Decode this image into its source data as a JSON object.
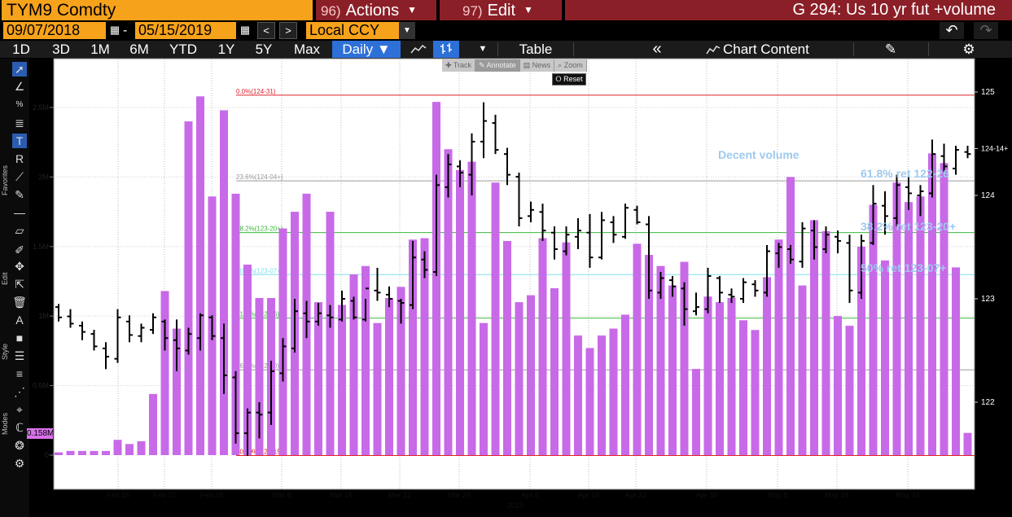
{
  "header": {
    "ticker": "TYM9 Comdty",
    "actions_num": "96)",
    "actions_label": "Actions",
    "edit_num": "97)",
    "edit_label": "Edit",
    "title": "G 294: Us 10 yr fut +volume"
  },
  "controls": {
    "start_date": "09/07/2018",
    "end_date": "05/15/2019",
    "date_separator": "-",
    "currency": "Local CCY"
  },
  "toolbar": {
    "periods": [
      "1D",
      "3D",
      "1M",
      "6M",
      "YTD",
      "1Y",
      "5Y",
      "Max"
    ],
    "frequency": "Daily ▼",
    "table_label": "Table",
    "chart_content_label": "Chart Content"
  },
  "chart_tools": {
    "items": [
      "Track",
      "Annotate",
      "News",
      "Zoom"
    ],
    "reset_label": "Reset"
  },
  "side_groups": [
    "Favorites",
    "Edit",
    "Style",
    "Modes"
  ],
  "volume_tag": "0.158M",
  "colors": {
    "accent_orange": "#f7a21b",
    "menu_red": "#8b1f28",
    "volume_bar": "#c86ae8",
    "price_bar": "#000000",
    "fib_red": "#e1212a",
    "fib_green": "#38b838",
    "fib_cyan": "#7fe0e8",
    "fib_gray": "#9a9a9a",
    "annotation_blue": "#9fc9ee"
  },
  "chart_data": {
    "type": "bar",
    "x_ticks": [
      "Feb 15",
      "Feb 22",
      "Feb 28",
      "Mar 8",
      "Mar 15",
      "Mar 22",
      "Mar 29",
      "Apr 8",
      "Apr 15",
      "Apr 22",
      "Apr 30",
      "May 8",
      "May 15",
      "May 23"
    ],
    "x_year": "2019",
    "left_axis_ticks": [
      "2.5M",
      "2M",
      "1.5M",
      "1M",
      "0.5M",
      "0"
    ],
    "left_axis_values": [
      2.5,
      2.0,
      1.5,
      1.0,
      0.5,
      0
    ],
    "right_axis_ticks": [
      "125",
      "124-14+",
      "124",
      "123",
      "122"
    ],
    "right_axis_values": [
      125,
      124.453,
      124,
      123,
      122
    ],
    "fib_levels": [
      {
        "label": "0.0%(124-31)",
        "price": 124.969,
        "color": "#e1212a"
      },
      {
        "label": "23.6%(124-04+)",
        "price": 124.141,
        "color": "#9a9a9a"
      },
      {
        "label": "38.2%(123-20+)",
        "price": 123.641,
        "color": "#38b838"
      },
      {
        "label": "50.0%(123-07+)",
        "price": 123.234,
        "color": "#7fe0e8"
      },
      {
        "label": "61.8%(122-26)",
        "price": 122.813,
        "color": "#38b838"
      },
      {
        "label": "76.4%(122-10)",
        "price": 122.313,
        "color": "#9a9a9a"
      },
      {
        "label": "100.0%(121-15+)",
        "price": 121.484,
        "color": "#e1212a"
      }
    ],
    "annotations": [
      "Decent volume",
      "61.8% ret 122-26",
      "38.2% ret 123-20+",
      "50% ret 123-07+"
    ],
    "volume_m": [
      0.02,
      0.03,
      0.03,
      0.03,
      0.03,
      0.11,
      0.08,
      0.1,
      0.44,
      1.18,
      0.91,
      2.4,
      2.58,
      1.86,
      2.48,
      1.88,
      1.37,
      1.13,
      1.13,
      1.63,
      1.75,
      1.88,
      1.1,
      1.75,
      1.08,
      1.3,
      1.36,
      0.95,
      1.13,
      1.21,
      1.55,
      1.56,
      2.54,
      2.2,
      2.05,
      2.11,
      0.95,
      1.96,
      1.54,
      1.1,
      1.15,
      1.56,
      1.2,
      1.53,
      0.86,
      0.77,
      0.86,
      0.91,
      1.01,
      1.52,
      1.44,
      1.36,
      1.22,
      1.39,
      0.62,
      1.14,
      1.1,
      1.13,
      0.97,
      0.9,
      1.28,
      1.55,
      2.0,
      1.22,
      1.69,
      1.61,
      1.0,
      0.93,
      1.5,
      1.8,
      1.4,
      1.96,
      1.82,
      1.86,
      2.17,
      2.1,
      1.35,
      0.16
    ],
    "price_ohlc": [
      [
        122.92,
        122.95,
        122.78,
        122.82
      ],
      [
        122.83,
        122.9,
        122.72,
        122.76
      ],
      [
        122.74,
        122.78,
        122.6,
        122.68
      ],
      [
        122.66,
        122.7,
        122.5,
        122.54
      ],
      [
        122.52,
        122.58,
        122.32,
        122.44
      ],
      [
        122.42,
        122.9,
        122.38,
        122.82
      ],
      [
        122.78,
        122.84,
        122.58,
        122.65
      ],
      [
        122.64,
        122.76,
        122.58,
        122.72
      ],
      [
        122.7,
        122.86,
        122.66,
        122.82
      ],
      [
        122.78,
        122.8,
        122.5,
        122.62
      ],
      [
        122.6,
        122.8,
        122.3,
        122.52
      ],
      [
        122.5,
        122.72,
        122.46,
        122.66
      ],
      [
        122.62,
        122.86,
        122.5,
        122.84
      ],
      [
        122.82,
        122.84,
        122.6,
        122.64
      ],
      [
        122.62,
        122.76,
        122.08,
        122.26
      ],
      [
        122.24,
        122.3,
        121.6,
        121.7
      ],
      [
        121.7,
        121.94,
        121.48,
        121.9
      ],
      [
        121.9,
        122.0,
        121.65,
        121.88
      ],
      [
        121.9,
        122.4,
        121.78,
        122.3
      ],
      [
        122.28,
        122.62,
        122.2,
        122.54
      ],
      [
        122.52,
        123.0,
        122.48,
        122.88
      ],
      [
        122.86,
        122.98,
        122.62,
        122.78
      ],
      [
        122.78,
        122.96,
        122.74,
        122.86
      ],
      [
        122.84,
        122.94,
        122.72,
        122.82
      ],
      [
        122.8,
        123.08,
        122.78,
        123.0
      ],
      [
        122.98,
        123.02,
        122.8,
        122.82
      ],
      [
        122.8,
        123.0,
        122.78,
        123.1
      ],
      [
        123.08,
        123.3,
        122.98,
        123.06
      ],
      [
        123.04,
        123.12,
        122.92,
        123.0
      ],
      [
        122.98,
        123.0,
        122.76,
        122.96
      ],
      [
        122.94,
        123.56,
        122.9,
        123.4
      ],
      [
        123.38,
        123.46,
        123.2,
        123.28
      ],
      [
        123.26,
        124.2,
        123.22,
        124.1
      ],
      [
        124.08,
        124.4,
        123.98,
        124.3
      ],
      [
        124.28,
        124.34,
        124.08,
        124.22
      ],
      [
        124.2,
        124.6,
        124.0,
        124.52
      ],
      [
        124.52,
        124.9,
        124.36,
        124.72
      ],
      [
        124.7,
        124.78,
        124.4,
        124.44
      ],
      [
        124.4,
        124.46,
        124.1,
        124.2
      ],
      [
        124.18,
        124.22,
        123.7,
        123.78
      ],
      [
        123.8,
        123.94,
        123.74,
        123.86
      ],
      [
        123.84,
        123.92,
        123.56,
        123.66
      ],
      [
        123.64,
        123.7,
        123.38,
        123.48
      ],
      [
        123.46,
        123.7,
        123.42,
        123.62
      ],
      [
        123.6,
        123.78,
        123.48,
        123.66
      ],
      [
        123.64,
        123.82,
        123.3,
        123.4
      ],
      [
        123.4,
        123.84,
        123.38,
        123.76
      ],
      [
        123.74,
        123.8,
        123.54,
        123.62
      ],
      [
        123.6,
        123.92,
        123.58,
        123.88
      ],
      [
        123.86,
        123.9,
        123.72,
        123.74
      ],
      [
        123.72,
        123.8,
        123.0,
        123.08
      ],
      [
        123.06,
        123.26,
        123.0,
        123.2
      ],
      [
        123.18,
        123.22,
        123.02,
        123.12
      ],
      [
        123.1,
        123.16,
        122.74,
        122.9
      ],
      [
        122.88,
        123.06,
        122.84,
        122.92
      ],
      [
        122.9,
        123.3,
        122.86,
        123.22
      ],
      [
        123.2,
        123.22,
        122.96,
        123.06
      ],
      [
        123.04,
        123.1,
        122.96,
        123.02
      ],
      [
        123.0,
        123.2,
        122.96,
        123.16
      ],
      [
        123.14,
        123.18,
        123.02,
        123.08
      ],
      [
        123.06,
        123.52,
        123.02,
        123.46
      ],
      [
        123.44,
        123.54,
        123.3,
        123.5
      ],
      [
        123.48,
        123.52,
        123.34,
        123.38
      ],
      [
        123.36,
        123.74,
        123.3,
        123.68
      ],
      [
        123.66,
        123.76,
        123.38,
        123.5
      ],
      [
        123.48,
        123.7,
        123.44,
        123.62
      ],
      [
        123.6,
        123.66,
        123.44,
        123.56
      ],
      [
        123.54,
        123.62,
        122.96,
        123.08
      ],
      [
        123.06,
        123.62,
        123.0,
        123.56
      ],
      [
        123.54,
        124.1,
        123.52,
        123.92
      ],
      [
        123.9,
        124.04,
        123.62,
        123.8
      ],
      [
        123.78,
        124.2,
        123.7,
        124.1
      ],
      [
        124.08,
        124.2,
        123.86,
        124.02
      ],
      [
        124.0,
        124.1,
        123.8,
        124.04
      ],
      [
        124.02,
        124.54,
        123.98,
        124.4
      ],
      [
        124.38,
        124.5,
        124.22,
        124.28
      ],
      [
        124.26,
        124.48,
        124.2,
        124.44
      ],
      [
        124.42,
        124.48,
        124.36,
        124.4
      ]
    ]
  }
}
